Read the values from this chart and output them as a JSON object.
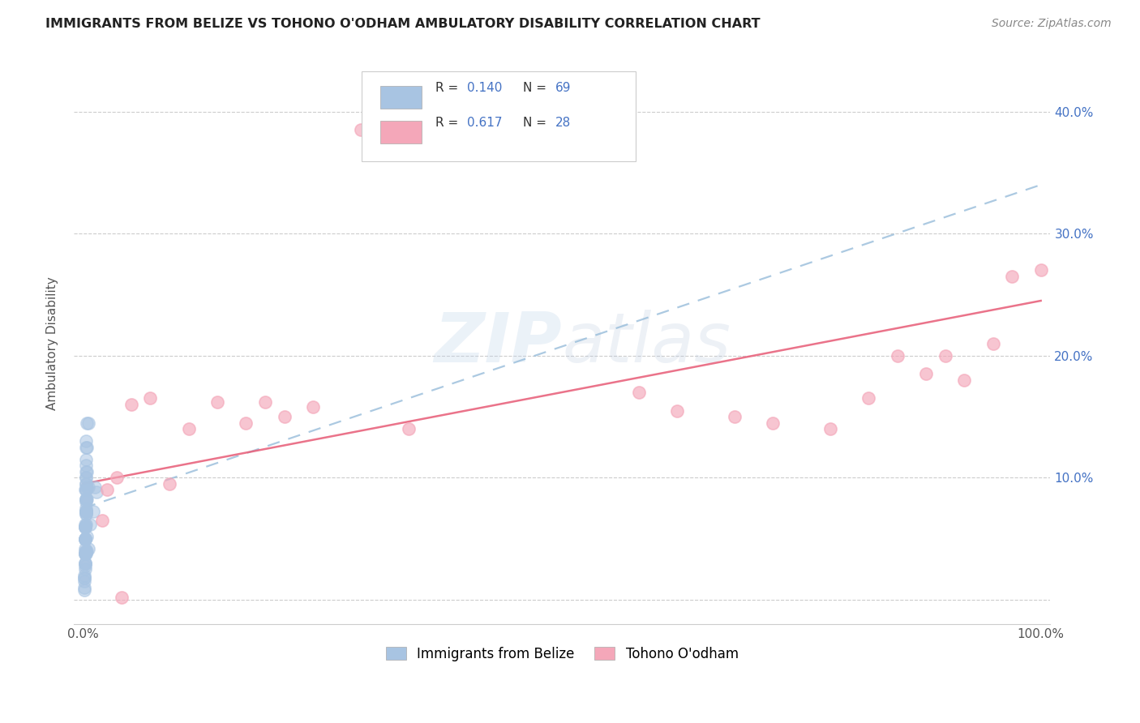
{
  "title": "IMMIGRANTS FROM BELIZE VS TOHONO O'ODHAM AMBULATORY DISABILITY CORRELATION CHART",
  "source": "Source: ZipAtlas.com",
  "ylabel": "Ambulatory Disability",
  "xlim": [
    -0.01,
    1.01
  ],
  "ylim": [
    -0.02,
    0.44
  ],
  "xtick_positions": [
    0.0,
    1.0
  ],
  "xticklabels": [
    "0.0%",
    "100.0%"
  ],
  "ytick_positions": [
    0.0,
    0.1,
    0.2,
    0.3,
    0.4
  ],
  "yticklabels": [
    "",
    "10.0%",
    "20.0%",
    "30.0%",
    "40.0%"
  ],
  "legend_R1": "R = 0.140",
  "legend_N1": "N = 69",
  "legend_R2": "R = 0.617",
  "legend_N2": "N = 28",
  "color_belize": "#a8c4e2",
  "color_tohono": "#f4a7b9",
  "trendline_belize_color": "#90b8d8",
  "trendline_tohono_color": "#e8607a",
  "watermark_color": "#c5d8ee",
  "belize_x": [
    0.003,
    0.004,
    0.003,
    0.005,
    0.004,
    0.003,
    0.003,
    0.003,
    0.003,
    0.002,
    0.003,
    0.003,
    0.003,
    0.003,
    0.003,
    0.004,
    0.003,
    0.003,
    0.003,
    0.003,
    0.003,
    0.003,
    0.003,
    0.003,
    0.003,
    0.003,
    0.003,
    0.003,
    0.002,
    0.002,
    0.002,
    0.002,
    0.003,
    0.002,
    0.002,
    0.002,
    0.002,
    0.002,
    0.002,
    0.004,
    0.005,
    0.004,
    0.002,
    0.002,
    0.002,
    0.002,
    0.002,
    0.002,
    0.002,
    0.002,
    0.002,
    0.002,
    0.002,
    0.002,
    0.001,
    0.001,
    0.001,
    0.001,
    0.001,
    0.001,
    0.012,
    0.014,
    0.01,
    0.007,
    0.005,
    0.004,
    0.004,
    0.003,
    0.003
  ],
  "belize_y": [
    0.125,
    0.145,
    0.13,
    0.145,
    0.125,
    0.115,
    0.105,
    0.11,
    0.095,
    0.09,
    0.1,
    0.1,
    0.09,
    0.09,
    0.08,
    0.105,
    0.095,
    0.082,
    0.075,
    0.082,
    0.072,
    0.07,
    0.082,
    0.072,
    0.072,
    0.072,
    0.062,
    0.072,
    0.062,
    0.06,
    0.06,
    0.06,
    0.07,
    0.06,
    0.06,
    0.05,
    0.05,
    0.05,
    0.05,
    0.092,
    0.092,
    0.082,
    0.05,
    0.042,
    0.04,
    0.038,
    0.038,
    0.038,
    0.038,
    0.03,
    0.03,
    0.03,
    0.028,
    0.025,
    0.02,
    0.018,
    0.018,
    0.015,
    0.01,
    0.008,
    0.092,
    0.088,
    0.072,
    0.062,
    0.042,
    0.052,
    0.04,
    0.038,
    0.04
  ],
  "tohono_x": [
    0.58,
    0.62,
    0.68,
    0.72,
    0.78,
    0.82,
    0.85,
    0.88,
    0.9,
    0.92,
    0.95,
    0.97,
    1.0,
    0.04,
    0.05,
    0.07,
    0.09,
    0.11,
    0.14,
    0.17,
    0.19,
    0.21,
    0.24,
    0.29,
    0.34,
    0.02,
    0.025,
    0.035
  ],
  "tohono_y": [
    0.17,
    0.155,
    0.15,
    0.145,
    0.14,
    0.165,
    0.2,
    0.185,
    0.2,
    0.18,
    0.21,
    0.265,
    0.27,
    0.002,
    0.16,
    0.165,
    0.095,
    0.14,
    0.162,
    0.145,
    0.162,
    0.15,
    0.158,
    0.385,
    0.14,
    0.065,
    0.09,
    0.1
  ],
  "belize_trendline_x0": 0.0,
  "belize_trendline_y0": 0.075,
  "belize_trendline_x1": 1.0,
  "belize_trendline_y1": 0.34,
  "tohono_trendline_x0": 0.0,
  "tohono_trendline_y0": 0.095,
  "tohono_trendline_x1": 1.0,
  "tohono_trendline_y1": 0.245
}
